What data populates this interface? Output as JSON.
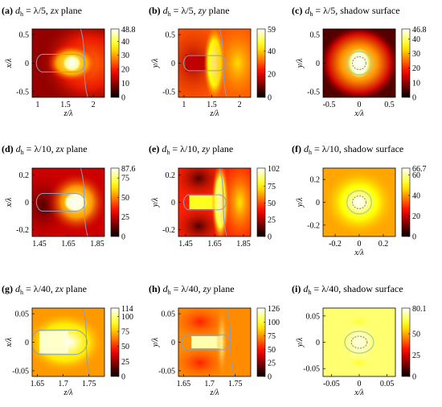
{
  "figure": {
    "colormap": "hot",
    "contour_colors": {
      "outer": "#8a9fbf",
      "inner": "#a8d08d",
      "dashed": "#6a7fb0"
    }
  },
  "chart_data": [
    {
      "id": "a",
      "type": "heatmap",
      "label": "(a)",
      "title_var": "d",
      "title_sub": "h",
      "title_value": " = λ/5, ",
      "title_plane": "zx",
      "title_rest": " plane",
      "xlabel": "z/λ",
      "ylabel": "x/λ",
      "xlim": [
        0.9,
        2.2
      ],
      "ylim": [
        -0.6,
        0.6
      ],
      "xticks": [
        {
          "v": 1,
          "t": "1"
        },
        {
          "v": 1.5,
          "t": "1.5"
        },
        {
          "v": 2,
          "t": "2"
        }
      ],
      "yticks": [
        {
          "v": 0.5,
          "t": "0.5"
        },
        {
          "v": 0,
          "t": "0"
        },
        {
          "v": -0.5,
          "t": "-0.5"
        }
      ],
      "colorbar": {
        "max": 48.8,
        "max_label": "48.8",
        "ticks": [
          {
            "v": 40,
            "t": "40"
          },
          {
            "v": 30,
            "t": "30"
          },
          {
            "v": 20,
            "t": "20"
          },
          {
            "v": 10,
            "t": "10"
          },
          {
            "v": 0,
            "t": "0"
          }
        ]
      }
    },
    {
      "id": "b",
      "type": "heatmap",
      "label": "(b)",
      "title_var": "d",
      "title_sub": "h",
      "title_value": " = λ/5, ",
      "title_plane": "zy",
      "title_rest": " plane",
      "xlabel": "z/λ",
      "ylabel": "y/λ",
      "xlim": [
        0.9,
        2.2
      ],
      "ylim": [
        -0.6,
        0.6
      ],
      "xticks": [
        {
          "v": 1,
          "t": "1"
        },
        {
          "v": 1.5,
          "t": "1.5"
        },
        {
          "v": 2,
          "t": "2"
        }
      ],
      "yticks": [
        {
          "v": 0.5,
          "t": "0.5"
        },
        {
          "v": 0,
          "t": "0"
        },
        {
          "v": -0.5,
          "t": "-0.5"
        }
      ],
      "colorbar": {
        "max": 59,
        "max_label": "59",
        "ticks": [
          {
            "v": 40,
            "t": "40"
          },
          {
            "v": 20,
            "t": "20"
          },
          {
            "v": 0,
            "t": "0"
          }
        ]
      }
    },
    {
      "id": "c",
      "type": "heatmap",
      "label": "(c)",
      "title_var": "d",
      "title_sub": "h",
      "title_value": " = λ/5, ",
      "title_plane": "",
      "title_rest": "shadow surface",
      "xlabel": "x/λ",
      "ylabel": "y/λ",
      "xlim": [
        -0.6,
        0.6
      ],
      "ylim": [
        -0.6,
        0.6
      ],
      "xticks": [
        {
          "v": -0.5,
          "t": "-0.5"
        },
        {
          "v": 0,
          "t": "0"
        },
        {
          "v": 0.5,
          "t": "0.5"
        }
      ],
      "yticks": [
        {
          "v": 0.5,
          "t": "0.5"
        },
        {
          "v": 0,
          "t": "0"
        },
        {
          "v": -0.5,
          "t": "-0.5"
        }
      ],
      "colorbar": {
        "max": 46.8,
        "max_label": "46.8",
        "ticks": [
          {
            "v": 40,
            "t": "40"
          },
          {
            "v": 30,
            "t": "30"
          },
          {
            "v": 20,
            "t": "20"
          },
          {
            "v": 10,
            "t": "10"
          },
          {
            "v": 0,
            "t": "0"
          }
        ]
      }
    },
    {
      "id": "d",
      "type": "heatmap",
      "label": "(d)",
      "title_var": "d",
      "title_sub": "h",
      "title_value": " = λ/10, ",
      "title_plane": "zx",
      "title_rest": " plane",
      "xlabel": "",
      "ylabel": "x/λ",
      "xlim": [
        1.4,
        1.9
      ],
      "ylim": [
        -0.25,
        0.25
      ],
      "xticks": [
        {
          "v": 1.45,
          "t": "1.45"
        },
        {
          "v": 1.65,
          "t": "1.65"
        },
        {
          "v": 1.85,
          "t": "1.85"
        }
      ],
      "yticks": [
        {
          "v": 0.2,
          "t": "0.2"
        },
        {
          "v": 0,
          "t": "0"
        },
        {
          "v": -0.2,
          "t": "-0.2"
        }
      ],
      "colorbar": {
        "max": 87.6,
        "max_label": "87.6",
        "ticks": [
          {
            "v": 75,
            "t": "75"
          },
          {
            "v": 50,
            "t": "50"
          },
          {
            "v": 25,
            "t": "25"
          },
          {
            "v": 0,
            "t": "0"
          }
        ]
      }
    },
    {
      "id": "e",
      "type": "heatmap",
      "label": "(e)",
      "title_var": "d",
      "title_sub": "h",
      "title_value": " = λ/10, ",
      "title_plane": "zy",
      "title_rest": " plane",
      "xlabel": "",
      "ylabel": "y/λ",
      "xlim": [
        1.4,
        1.9
      ],
      "ylim": [
        -0.25,
        0.25
      ],
      "xticks": [
        {
          "v": 1.45,
          "t": "1.45"
        },
        {
          "v": 1.65,
          "t": "1.65"
        },
        {
          "v": 1.85,
          "t": "1.85"
        }
      ],
      "yticks": [
        {
          "v": 0.2,
          "t": "0.2"
        },
        {
          "v": 0,
          "t": "0"
        },
        {
          "v": -0.2,
          "t": "-0.2"
        }
      ],
      "colorbar": {
        "max": 102,
        "max_label": "102",
        "ticks": [
          {
            "v": 75,
            "t": "75"
          },
          {
            "v": 50,
            "t": "50"
          },
          {
            "v": 25,
            "t": "25"
          },
          {
            "v": 0,
            "t": "0"
          }
        ]
      }
    },
    {
      "id": "f",
      "type": "heatmap",
      "label": "(f)",
      "title_var": "d",
      "title_sub": "h",
      "title_value": " = λ/10, ",
      "title_plane": "",
      "title_rest": "shadow surface",
      "xlabel": "x/λ",
      "ylabel": "y/λ",
      "xlim": [
        -0.3,
        0.3
      ],
      "ylim": [
        -0.3,
        0.3
      ],
      "xticks": [
        {
          "v": -0.2,
          "t": "-0.2"
        },
        {
          "v": 0,
          "t": "0"
        },
        {
          "v": 0.2,
          "t": "0.2"
        }
      ],
      "yticks": [
        {
          "v": 0.2,
          "t": "0.2"
        },
        {
          "v": 0,
          "t": "0"
        },
        {
          "v": -0.2,
          "t": "-0.2"
        }
      ],
      "colorbar": {
        "max": 66.7,
        "max_label": "66.7",
        "ticks": [
          {
            "v": 60,
            "t": "60"
          },
          {
            "v": 40,
            "t": "40"
          },
          {
            "v": 20,
            "t": "20"
          },
          {
            "v": 0,
            "t": "0"
          }
        ]
      }
    },
    {
      "id": "g",
      "type": "heatmap",
      "label": "(g)",
      "title_var": "d",
      "title_sub": "h",
      "title_value": " = λ/40, ",
      "title_plane": "zx",
      "title_rest": " plane",
      "xlabel": "z/λ",
      "ylabel": "x/λ",
      "xlim": [
        1.64,
        1.78
      ],
      "ylim": [
        -0.06,
        0.06
      ],
      "xticks": [
        {
          "v": 1.65,
          "t": "1.65"
        },
        {
          "v": 1.7,
          "t": "1.7"
        },
        {
          "v": 1.75,
          "t": "1.75"
        }
      ],
      "yticks": [
        {
          "v": 0.05,
          "t": "0.05"
        },
        {
          "v": 0,
          "t": "0"
        },
        {
          "v": -0.05,
          "t": "-0.05"
        }
      ],
      "colorbar": {
        "max": 114,
        "max_label": "114",
        "ticks": [
          {
            "v": 100,
            "t": "100"
          },
          {
            "v": 75,
            "t": "75"
          },
          {
            "v": 50,
            "t": "50"
          },
          {
            "v": 25,
            "t": "25"
          },
          {
            "v": 0,
            "t": "0"
          }
        ]
      }
    },
    {
      "id": "h",
      "type": "heatmap",
      "label": "(h)",
      "title_var": "d",
      "title_sub": "h",
      "title_value": " = λ/40, ",
      "title_plane": "zy",
      "title_rest": " plane",
      "xlabel": "z/λ",
      "ylabel": "y/λ",
      "xlim": [
        1.64,
        1.78
      ],
      "ylim": [
        -0.06,
        0.06
      ],
      "xticks": [
        {
          "v": 1.65,
          "t": "1.65"
        },
        {
          "v": 1.7,
          "t": "1.7"
        },
        {
          "v": 1.75,
          "t": "1.75"
        }
      ],
      "yticks": [
        {
          "v": 0.05,
          "t": "0.05"
        },
        {
          "v": 0,
          "t": "0"
        },
        {
          "v": -0.05,
          "t": "-0.05"
        }
      ],
      "colorbar": {
        "max": 126,
        "max_label": "126",
        "ticks": [
          {
            "v": 100,
            "t": "100"
          },
          {
            "v": 75,
            "t": "75"
          },
          {
            "v": 50,
            "t": "50"
          },
          {
            "v": 25,
            "t": "25"
          },
          {
            "v": 0,
            "t": "0"
          }
        ]
      }
    },
    {
      "id": "i",
      "type": "heatmap",
      "label": "(i)",
      "title_var": "d",
      "title_sub": "h",
      "title_value": " = λ/40, ",
      "title_plane": "",
      "title_rest": "shadow surface",
      "xlabel": "x/λ",
      "ylabel": "y/λ",
      "xlim": [
        -0.065,
        0.065
      ],
      "ylim": [
        -0.065,
        0.065
      ],
      "xticks": [
        {
          "v": -0.05,
          "t": "-0.05"
        },
        {
          "v": 0,
          "t": "0"
        },
        {
          "v": 0.05,
          "t": "0.05"
        }
      ],
      "yticks": [
        {
          "v": 0.05,
          "t": "0.05"
        },
        {
          "v": 0,
          "t": "0"
        },
        {
          "v": -0.05,
          "t": "-0.05"
        }
      ],
      "colorbar": {
        "max": 80.1,
        "max_label": "80.1",
        "ticks": [
          {
            "v": 50,
            "t": "50"
          },
          {
            "v": 25,
            "t": "25"
          },
          {
            "v": 0,
            "t": "0"
          }
        ]
      }
    }
  ]
}
